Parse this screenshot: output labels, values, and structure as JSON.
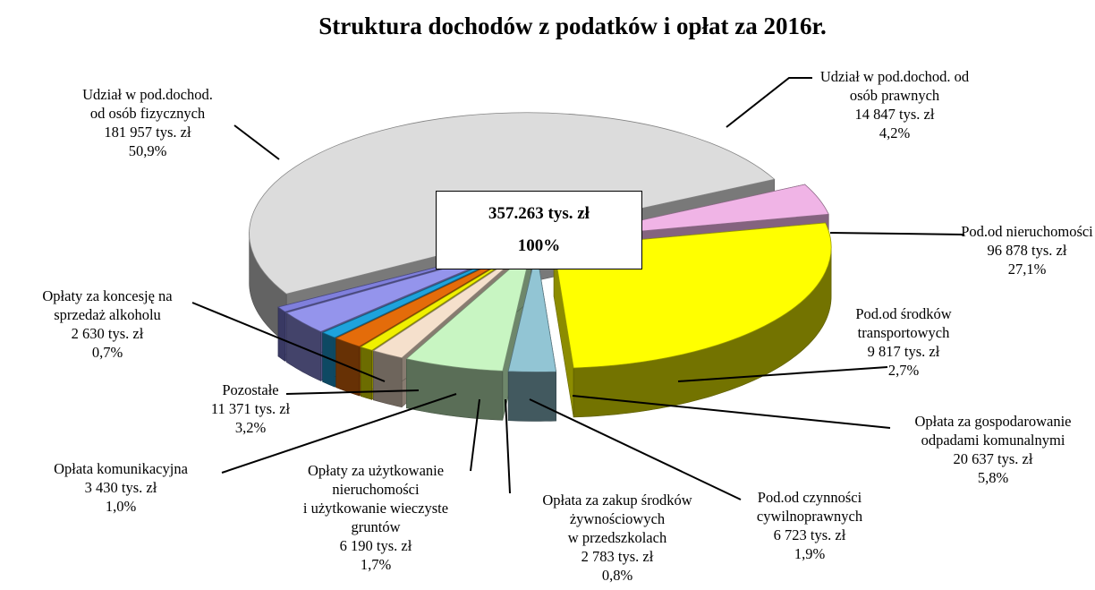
{
  "chart_data": {
    "type": "pie",
    "title": "Struktura dochodów z podatków i opłat za 2016r.",
    "center_value_label": "357.263 tys. zł",
    "center_percent_label": "100%",
    "categories": [
      "Udział w pod.dochod.\nod osób fizycznych",
      "Udział w pod.dochod. od\nosób prawnych",
      "Pod.od nieruchomości",
      "Pod.od środków\ntransportowych",
      "Opłata za gospodarowanie\nodpadami komunalnymi",
      "Pod.od czynności\ncywilnoprawnych",
      "Opłata za zakup środków\nżywnościowych\nw przedszkolach",
      "Opłaty za użytkowanie\nnieruchomości\ni użytkowanie wieczyste\ngruntów",
      "Opłata komunikacyjna",
      "Pozostałe",
      "Opłaty za koncesję na\nsprzedaż alkoholu"
    ],
    "values": [
      181957,
      14847,
      96878,
      9817,
      20637,
      6723,
      2783,
      6190,
      3430,
      11371,
      2630
    ],
    "value_labels": [
      "181 957 tys. zł",
      "14 847 tys. zł",
      "96 878 tys. zł",
      "9 817 tys. zł",
      "20 637 tys. zł",
      "6 723 tys. zł",
      "2 783 tys. zł",
      "6 190 tys. zł",
      "3 430 tys. zł",
      "11 371 tys. zł",
      "2 630 tys. zł"
    ],
    "percents": [
      50.9,
      4.2,
      27.1,
      2.7,
      5.8,
      1.9,
      0.8,
      1.7,
      1.0,
      3.2,
      0.7
    ],
    "percent_labels": [
      "50,9%",
      "4,2%",
      "27,1%",
      "2,7%",
      "5,8%",
      "1,9%",
      "0,8%",
      "1,7%",
      "1,0%",
      "3,2%",
      "0,7%"
    ],
    "colors": [
      "#dcdcdc",
      "#f0b4e6",
      "#ffff00",
      "#92c5d4",
      "#c8f5c2",
      "#f5e0cc",
      "#f0f000",
      "#e46c0a",
      "#1ea3dc",
      "#9494ec",
      "#7f7fdc"
    ]
  }
}
